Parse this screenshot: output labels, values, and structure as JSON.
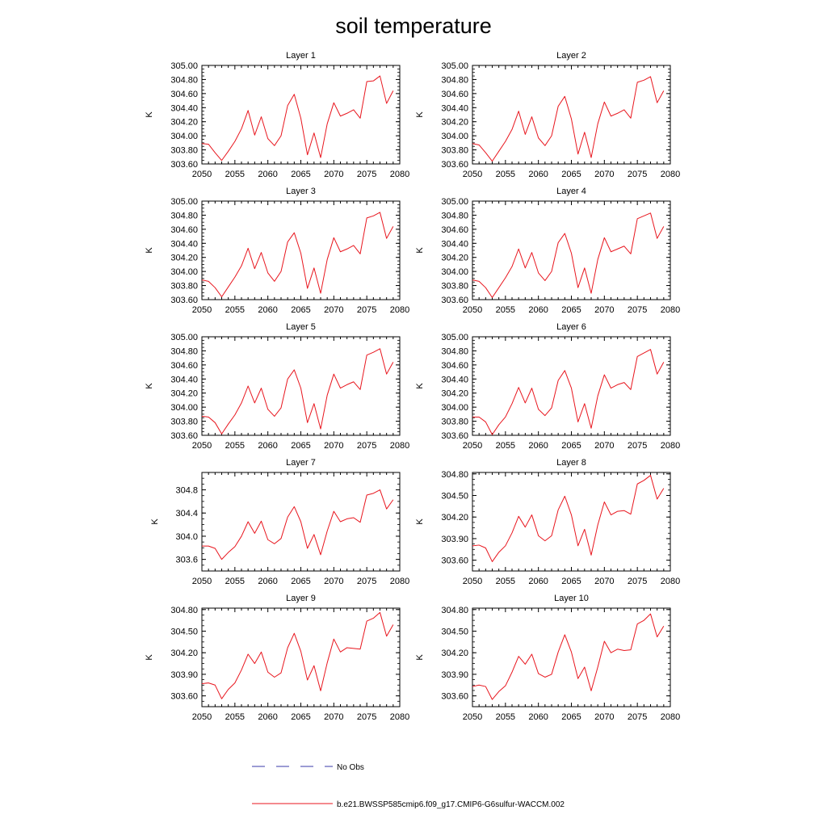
{
  "title": "soil temperature",
  "series_color": "#e8161e",
  "obs_color": "#3a3aa8",
  "legend": {
    "obs_label": "No Obs",
    "model_label": "b.e21.BWSSP585cmip6.f09_g17.CMIP6-G6sulfur-WACCM.002"
  },
  "chart_data": [
    {
      "type": "line",
      "title": "Layer 1",
      "ylabel": "K",
      "xlim": [
        2050,
        2080
      ],
      "ylim": [
        303.6,
        305.0
      ],
      "xticks": [
        "2050",
        "2055",
        "2060",
        "2065",
        "2070",
        "2075",
        "2080"
      ],
      "yticks": [
        "303.60",
        "303.80",
        "304.00",
        "304.20",
        "304.40",
        "304.60",
        "304.80",
        "305.00"
      ],
      "x": [
        2050,
        2051,
        2052,
        2053,
        2054,
        2055,
        2056,
        2057,
        2058,
        2059,
        2060,
        2061,
        2062,
        2063,
        2064,
        2065,
        2066,
        2067,
        2068,
        2069,
        2070,
        2071,
        2072,
        2073,
        2074,
        2075,
        2076,
        2077,
        2078,
        2079
      ],
      "series": [
        {
          "values": [
            303.89,
            303.88,
            303.76,
            303.65,
            303.78,
            303.92,
            304.1,
            304.36,
            304.01,
            304.27,
            303.96,
            303.86,
            304.0,
            304.43,
            304.59,
            304.25,
            303.73,
            304.04,
            303.69,
            304.17,
            304.47,
            304.28,
            304.32,
            304.37,
            304.25,
            304.77,
            304.78,
            304.85,
            304.46,
            304.64
          ]
        }
      ]
    },
    {
      "type": "line",
      "title": "Layer 2",
      "ylabel": "K",
      "xlim": [
        2050,
        2080
      ],
      "ylim": [
        303.6,
        305.0
      ],
      "xticks": [
        "2050",
        "2055",
        "2060",
        "2065",
        "2070",
        "2075",
        "2080"
      ],
      "yticks": [
        "303.60",
        "303.80",
        "304.00",
        "304.20",
        "304.40",
        "304.60",
        "304.80",
        "305.00"
      ],
      "x": [
        2050,
        2051,
        2052,
        2053,
        2054,
        2055,
        2056,
        2057,
        2058,
        2059,
        2060,
        2061,
        2062,
        2063,
        2064,
        2065,
        2066,
        2067,
        2068,
        2069,
        2070,
        2071,
        2072,
        2073,
        2074,
        2075,
        2076,
        2077,
        2078,
        2079
      ],
      "series": [
        {
          "values": [
            303.89,
            303.87,
            303.76,
            303.64,
            303.78,
            303.92,
            304.09,
            304.35,
            304.02,
            304.27,
            303.97,
            303.86,
            304.0,
            304.42,
            304.56,
            304.24,
            303.74,
            304.05,
            303.69,
            304.17,
            304.48,
            304.28,
            304.32,
            304.37,
            304.25,
            304.76,
            304.79,
            304.84,
            304.47,
            304.64
          ]
        }
      ]
    },
    {
      "type": "line",
      "title": "Layer 3",
      "ylabel": "K",
      "xlim": [
        2050,
        2080
      ],
      "ylim": [
        303.6,
        305.0
      ],
      "xticks": [
        "2050",
        "2055",
        "2060",
        "2065",
        "2070",
        "2075",
        "2080"
      ],
      "yticks": [
        "303.60",
        "303.80",
        "304.00",
        "304.20",
        "304.40",
        "304.60",
        "304.80",
        "305.00"
      ],
      "x": [
        2050,
        2051,
        2052,
        2053,
        2054,
        2055,
        2056,
        2057,
        2058,
        2059,
        2060,
        2061,
        2062,
        2063,
        2064,
        2065,
        2066,
        2067,
        2068,
        2069,
        2070,
        2071,
        2072,
        2073,
        2074,
        2075,
        2076,
        2077,
        2078,
        2079
      ],
      "series": [
        {
          "values": [
            303.88,
            303.86,
            303.77,
            303.64,
            303.78,
            303.92,
            304.08,
            304.33,
            304.04,
            304.27,
            303.98,
            303.86,
            304.0,
            304.42,
            304.55,
            304.26,
            303.76,
            304.05,
            303.69,
            304.17,
            304.48,
            304.28,
            304.32,
            304.37,
            304.25,
            304.76,
            304.79,
            304.84,
            304.47,
            304.64
          ]
        }
      ]
    },
    {
      "type": "line",
      "title": "Layer 4",
      "ylabel": "K",
      "xlim": [
        2050,
        2080
      ],
      "ylim": [
        303.6,
        305.0
      ],
      "xticks": [
        "2050",
        "2055",
        "2060",
        "2065",
        "2070",
        "2075",
        "2080"
      ],
      "yticks": [
        "303.60",
        "303.80",
        "304.00",
        "304.20",
        "304.40",
        "304.60",
        "304.80",
        "305.00"
      ],
      "x": [
        2050,
        2051,
        2052,
        2053,
        2054,
        2055,
        2056,
        2057,
        2058,
        2059,
        2060,
        2061,
        2062,
        2063,
        2064,
        2065,
        2066,
        2067,
        2068,
        2069,
        2070,
        2071,
        2072,
        2073,
        2074,
        2075,
        2076,
        2077,
        2078,
        2079
      ],
      "series": [
        {
          "values": [
            303.88,
            303.86,
            303.77,
            303.63,
            303.77,
            303.91,
            304.07,
            304.32,
            304.05,
            304.27,
            303.98,
            303.87,
            304.0,
            304.41,
            304.54,
            304.26,
            303.77,
            304.05,
            303.69,
            304.17,
            304.48,
            304.28,
            304.32,
            304.36,
            304.25,
            304.75,
            304.79,
            304.83,
            304.47,
            304.64
          ]
        }
      ]
    },
    {
      "type": "line",
      "title": "Layer 5",
      "ylabel": "K",
      "xlim": [
        2050,
        2080
      ],
      "ylim": [
        303.6,
        305.0
      ],
      "xticks": [
        "2050",
        "2055",
        "2060",
        "2065",
        "2070",
        "2075",
        "2080"
      ],
      "yticks": [
        "303.60",
        "303.80",
        "304.00",
        "304.20",
        "304.40",
        "304.60",
        "304.80",
        "305.00"
      ],
      "x": [
        2050,
        2051,
        2052,
        2053,
        2054,
        2055,
        2056,
        2057,
        2058,
        2059,
        2060,
        2061,
        2062,
        2063,
        2064,
        2065,
        2066,
        2067,
        2068,
        2069,
        2070,
        2071,
        2072,
        2073,
        2074,
        2075,
        2076,
        2077,
        2078,
        2079
      ],
      "series": [
        {
          "values": [
            303.87,
            303.86,
            303.78,
            303.62,
            303.76,
            303.89,
            304.06,
            304.3,
            304.06,
            304.27,
            303.97,
            303.87,
            303.99,
            304.4,
            304.53,
            304.27,
            303.78,
            304.05,
            303.69,
            304.17,
            304.47,
            304.27,
            304.32,
            304.36,
            304.25,
            304.74,
            304.78,
            304.83,
            304.47,
            304.64
          ]
        }
      ]
    },
    {
      "type": "line",
      "title": "Layer 6",
      "ylabel": "K",
      "xlim": [
        2050,
        2080
      ],
      "ylim": [
        303.6,
        305.0
      ],
      "xticks": [
        "2050",
        "2055",
        "2060",
        "2065",
        "2070",
        "2075",
        "2080"
      ],
      "yticks": [
        "303.60",
        "303.80",
        "304.00",
        "304.20",
        "304.40",
        "304.60",
        "304.80",
        "305.00"
      ],
      "x": [
        2050,
        2051,
        2052,
        2053,
        2054,
        2055,
        2056,
        2057,
        2058,
        2059,
        2060,
        2061,
        2062,
        2063,
        2064,
        2065,
        2066,
        2067,
        2068,
        2069,
        2070,
        2071,
        2072,
        2073,
        2074,
        2075,
        2076,
        2077,
        2078,
        2079
      ],
      "series": [
        {
          "values": [
            303.86,
            303.86,
            303.79,
            303.61,
            303.75,
            303.86,
            304.05,
            304.28,
            304.06,
            304.27,
            303.97,
            303.88,
            303.99,
            304.38,
            304.52,
            304.27,
            303.79,
            304.05,
            303.7,
            304.16,
            304.46,
            304.27,
            304.32,
            304.35,
            304.25,
            304.72,
            304.77,
            304.82,
            304.47,
            304.64
          ]
        }
      ]
    },
    {
      "type": "line",
      "title": "Layer 7",
      "ylabel": "K",
      "xlim": [
        2050,
        2080
      ],
      "ylim": [
        303.4,
        305.1
      ],
      "xticks": [
        "2050",
        "2055",
        "2060",
        "2065",
        "2070",
        "2075",
        "2080"
      ],
      "yticks": [
        "303.6",
        "304.0",
        "304.4",
        "304.8"
      ],
      "x": [
        2050,
        2051,
        2052,
        2053,
        2054,
        2055,
        2056,
        2057,
        2058,
        2059,
        2060,
        2061,
        2062,
        2063,
        2064,
        2065,
        2066,
        2067,
        2068,
        2069,
        2070,
        2071,
        2072,
        2073,
        2074,
        2075,
        2076,
        2077,
        2078,
        2079
      ],
      "series": [
        {
          "values": [
            303.83,
            303.83,
            303.79,
            303.6,
            303.72,
            303.82,
            304.0,
            304.25,
            304.05,
            304.26,
            303.94,
            303.87,
            303.96,
            304.33,
            304.51,
            304.25,
            303.79,
            304.03,
            303.68,
            304.09,
            304.43,
            304.25,
            304.3,
            304.32,
            304.24,
            304.71,
            304.74,
            304.8,
            304.47,
            304.63
          ]
        }
      ]
    },
    {
      "type": "line",
      "title": "Layer 8",
      "ylabel": "K",
      "xlim": [
        2050,
        2080
      ],
      "ylim": [
        303.45,
        304.82
      ],
      "xticks": [
        "2050",
        "2055",
        "2060",
        "2065",
        "2070",
        "2075",
        "2080"
      ],
      "yticks": [
        "303.60",
        "303.90",
        "304.20",
        "304.50",
        "304.80"
      ],
      "x": [
        2050,
        2051,
        2052,
        2053,
        2054,
        2055,
        2056,
        2057,
        2058,
        2059,
        2060,
        2061,
        2062,
        2063,
        2064,
        2065,
        2066,
        2067,
        2068,
        2069,
        2070,
        2071,
        2072,
        2073,
        2074,
        2075,
        2076,
        2077,
        2078,
        2079
      ],
      "series": [
        {
          "values": [
            303.8,
            303.81,
            303.77,
            303.58,
            303.71,
            303.8,
            303.98,
            304.21,
            304.06,
            304.23,
            303.94,
            303.87,
            303.94,
            304.3,
            304.49,
            304.23,
            303.8,
            304.03,
            303.67,
            304.09,
            304.41,
            304.23,
            304.28,
            304.29,
            304.24,
            304.66,
            304.71,
            304.78,
            304.45,
            304.6
          ]
        }
      ]
    },
    {
      "type": "line",
      "title": "Layer 9",
      "ylabel": "K",
      "xlim": [
        2050,
        2080
      ],
      "ylim": [
        303.45,
        304.82
      ],
      "xticks": [
        "2050",
        "2055",
        "2060",
        "2065",
        "2070",
        "2075",
        "2080"
      ],
      "yticks": [
        "303.60",
        "303.90",
        "304.20",
        "304.50",
        "304.80"
      ],
      "x": [
        2050,
        2051,
        2052,
        2053,
        2054,
        2055,
        2056,
        2057,
        2058,
        2059,
        2060,
        2061,
        2062,
        2063,
        2064,
        2065,
        2066,
        2067,
        2068,
        2069,
        2070,
        2071,
        2072,
        2073,
        2074,
        2075,
        2076,
        2077,
        2078,
        2079
      ],
      "series": [
        {
          "values": [
            303.77,
            303.78,
            303.75,
            303.56,
            303.69,
            303.78,
            303.96,
            304.18,
            304.05,
            304.21,
            303.93,
            303.86,
            303.92,
            304.27,
            304.47,
            304.22,
            303.82,
            304.02,
            303.67,
            304.06,
            304.39,
            304.21,
            304.27,
            304.26,
            304.25,
            304.64,
            304.68,
            304.76,
            304.43,
            304.59
          ]
        }
      ]
    },
    {
      "type": "line",
      "title": "Layer 10",
      "ylabel": "K",
      "xlim": [
        2050,
        2080
      ],
      "ylim": [
        303.45,
        304.82
      ],
      "xticks": [
        "2050",
        "2055",
        "2060",
        "2065",
        "2070",
        "2075",
        "2080"
      ],
      "yticks": [
        "303.60",
        "303.90",
        "304.20",
        "304.50",
        "304.80"
      ],
      "x": [
        2050,
        2051,
        2052,
        2053,
        2054,
        2055,
        2056,
        2057,
        2058,
        2059,
        2060,
        2061,
        2062,
        2063,
        2064,
        2065,
        2066,
        2067,
        2068,
        2069,
        2070,
        2071,
        2072,
        2073,
        2074,
        2075,
        2076,
        2077,
        2078,
        2079
      ],
      "series": [
        {
          "values": [
            303.73,
            303.75,
            303.73,
            303.55,
            303.66,
            303.74,
            303.93,
            304.15,
            304.04,
            304.18,
            303.91,
            303.86,
            303.9,
            304.21,
            304.45,
            304.21,
            303.84,
            304.0,
            303.67,
            304.0,
            304.36,
            304.2,
            304.25,
            304.23,
            304.24,
            304.6,
            304.65,
            304.74,
            304.42,
            304.57
          ]
        }
      ]
    }
  ]
}
